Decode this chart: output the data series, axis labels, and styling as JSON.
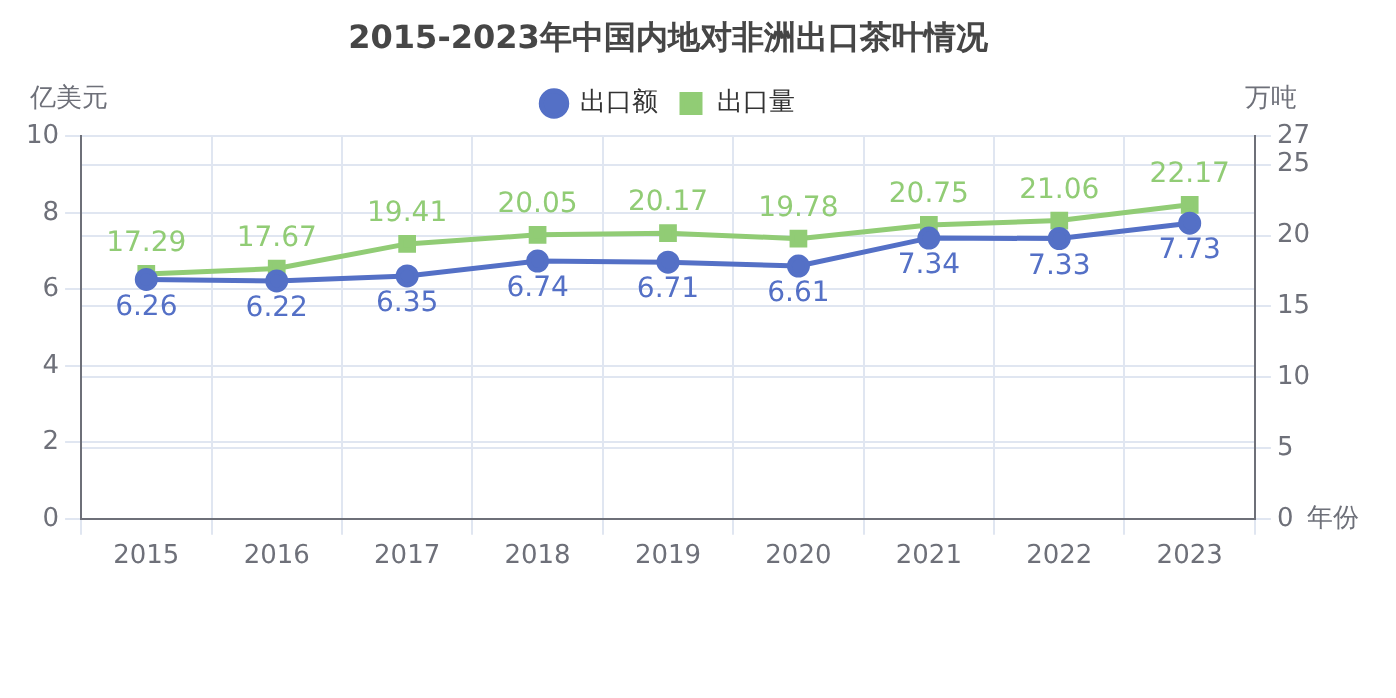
{
  "chart_data": {
    "type": "line",
    "title": "2015-2023年中国内地对非洲出口茶叶情况",
    "ylabel": "亿美元",
    "y2label": "万吨",
    "xlabel": "年份",
    "categories": [
      "2015",
      "2016",
      "2017",
      "2018",
      "2019",
      "2020",
      "2021",
      "2022",
      "2023"
    ],
    "series": [
      {
        "name": "出口额",
        "color": "#5470c6",
        "marker": "circle",
        "values": [
          6.26,
          6.22,
          6.35,
          6.74,
          6.71,
          6.61,
          7.34,
          7.33,
          7.73
        ]
      },
      {
        "name": "出口量",
        "color": "#91cc75",
        "marker": "square",
        "axis": "y2",
        "values": [
          17.29,
          17.67,
          19.41,
          20.05,
          20.17,
          19.78,
          20.75,
          21.06,
          22.17
        ]
      }
    ],
    "ylim": [
      0,
      10
    ],
    "yticks": [
      0,
      2,
      4,
      6,
      8,
      10
    ],
    "y2lim": [
      0,
      27
    ],
    "y2ticks": [
      0,
      5,
      10,
      15,
      20,
      25,
      27
    ],
    "grid": true,
    "legend": "top",
    "data_labels": true,
    "line_style": "solid"
  }
}
